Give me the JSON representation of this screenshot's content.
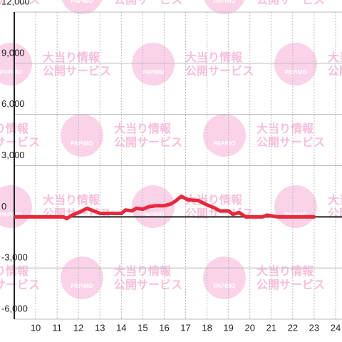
{
  "chart_data": {
    "type": "line",
    "watermark": {
      "logo": "PAPIMO",
      "line1": "大当り情報",
      "line2": "公開サービス"
    },
    "x": [
      9,
      11.3,
      11.45,
      11.7,
      12.0,
      12.4,
      12.7,
      13.0,
      13.5,
      14.0,
      14.2,
      14.5,
      14.7,
      15.0,
      15.3,
      15.6,
      16.0,
      16.3,
      16.5,
      16.8,
      17.1,
      17.6,
      18.0,
      18.3,
      18.6,
      19.0,
      19.2,
      19.5,
      19.8,
      20.6,
      20.8,
      21.3,
      23.05
    ],
    "series": [
      {
        "color": "#e8283c",
        "values": [
          0,
          0,
          -100,
          100,
          250,
          500,
          350,
          200,
          200,
          200,
          400,
          350,
          500,
          450,
          600,
          650,
          650,
          750,
          900,
          1200,
          1000,
          950,
          700,
          550,
          350,
          350,
          150,
          250,
          0,
          0,
          100,
          0,
          0
        ]
      }
    ],
    "xlim": [
      9,
      24.3
    ],
    "xticks": [
      10,
      11,
      12,
      13,
      14,
      15,
      16,
      17,
      18,
      19,
      20,
      21,
      22,
      23,
      24
    ],
    "ylim": [
      -6000,
      12000
    ],
    "yticks": [
      {
        "value": -6000,
        "label": "-6,000"
      },
      {
        "value": -3000,
        "label": "-3,000"
      },
      0,
      {
        "value": 3000,
        "label": "3,000"
      },
      {
        "value": 6000,
        "label": "6,000"
      },
      {
        "value": 9000,
        "label": "9,000"
      },
      {
        "value": 12000,
        "label": "12,000"
      }
    ],
    "grid": true
  }
}
